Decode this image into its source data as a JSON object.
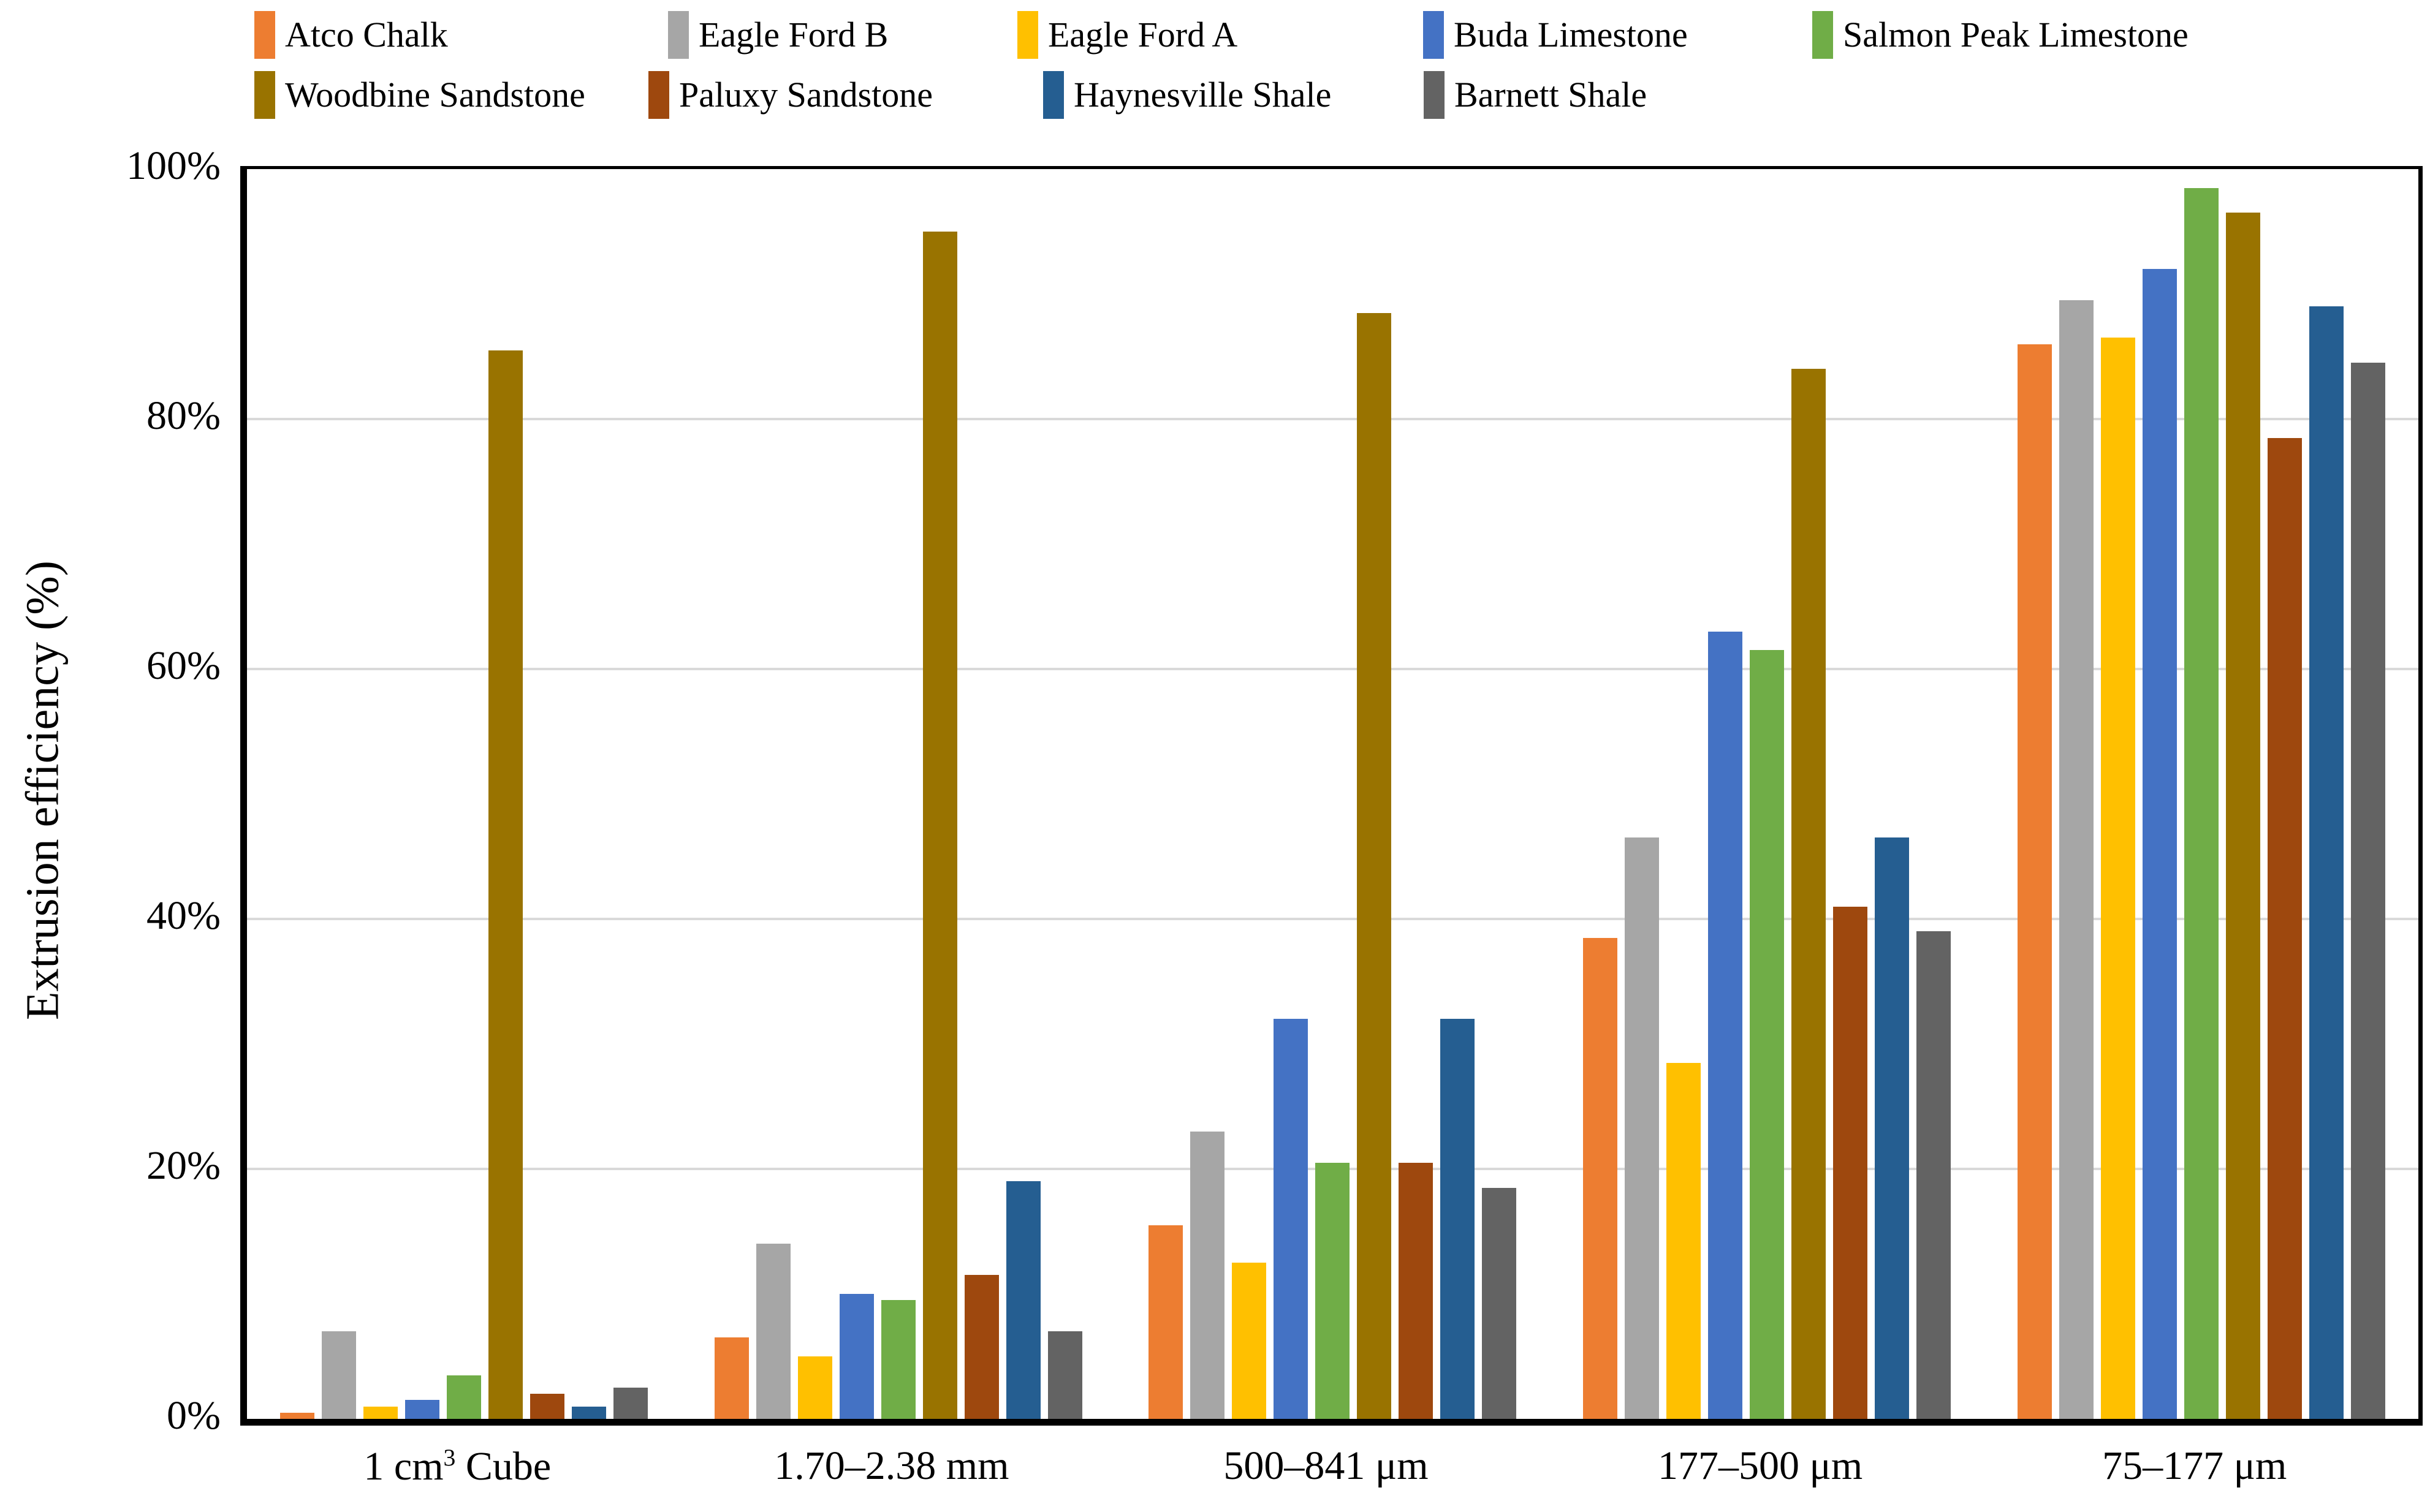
{
  "chart_data": {
    "type": "bar",
    "title": "",
    "xlabel": "",
    "ylabel": "Extrusion efficiency (%)",
    "ylim": [
      0,
      100
    ],
    "ytick_values": [
      0,
      20,
      40,
      60,
      80,
      100
    ],
    "ytick_labels": [
      "0%",
      "20%",
      "40%",
      "60%",
      "80%",
      "100%"
    ],
    "grid": "horizontal 20% gray gridlines",
    "legend_position": "top, two rows",
    "categories": [
      "1 cm³ Cube",
      "1.70–2.38 mm",
      "500–841 μm",
      "177–500 μm",
      "75–177 μm"
    ],
    "series": [
      {
        "name": "Atco Chalk",
        "color": "#ED7D31",
        "values": [
          0.5,
          6.5,
          15.5,
          38.5,
          86
        ]
      },
      {
        "name": "Eagle Ford B",
        "color": "#A6A6A6",
        "values": [
          7,
          14,
          23,
          46.5,
          89.5
        ]
      },
      {
        "name": "Eagle Ford A",
        "color": "#FFC000",
        "values": [
          1,
          5,
          12.5,
          28.5,
          86.5
        ]
      },
      {
        "name": "Buda Limestone",
        "color": "#4472C4",
        "values": [
          1.5,
          10,
          32,
          63,
          92
        ]
      },
      {
        "name": "Salmon Peak Limestone",
        "color": "#70AD47",
        "values": [
          3.5,
          9.5,
          20.5,
          61.5,
          98.5
        ]
      },
      {
        "name": "Woodbine Sandstone",
        "color": "#997300",
        "values": [
          85.5,
          95,
          88.5,
          84,
          96.5
        ]
      },
      {
        "name": "Paluxy Sandstone",
        "color": "#9E480E",
        "values": [
          2,
          11.5,
          20.5,
          41,
          78.5
        ]
      },
      {
        "name": "Haynesville Shale",
        "color": "#255E91",
        "values": [
          1,
          19,
          32,
          46.5,
          89
        ]
      },
      {
        "name": "Barnett Shale",
        "color": "#636363",
        "values": [
          2.5,
          7,
          18.5,
          39,
          84.5
        ]
      }
    ],
    "axis_colors": {
      "gridline": "#d9d9d9",
      "axis": "#000000",
      "text": "#000000"
    }
  }
}
